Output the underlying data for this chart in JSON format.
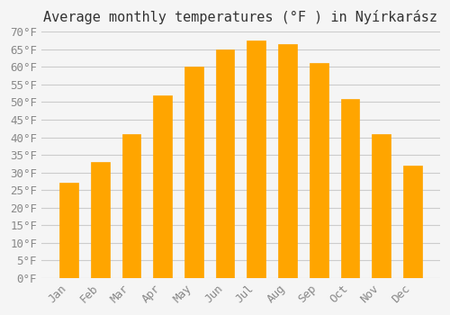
{
  "title": "Average monthly temperatures (°F ) in Nyírkarász",
  "months": [
    "Jan",
    "Feb",
    "Mar",
    "Apr",
    "May",
    "Jun",
    "Jul",
    "Aug",
    "Sep",
    "Oct",
    "Nov",
    "Dec"
  ],
  "values": [
    27,
    33,
    41,
    52,
    60,
    65,
    67.5,
    66.5,
    61,
    51,
    41,
    32
  ],
  "bar_color": "#FFA500",
  "bar_edge_color": "#CC8800",
  "background_color": "#F5F5F5",
  "grid_color": "#CCCCCC",
  "ylim": [
    0,
    70
  ],
  "yticks": [
    0,
    5,
    10,
    15,
    20,
    25,
    30,
    35,
    40,
    45,
    50,
    55,
    60,
    65,
    70
  ],
  "title_fontsize": 11,
  "tick_fontsize": 9,
  "tick_color": "#888888",
  "font_family": "monospace"
}
